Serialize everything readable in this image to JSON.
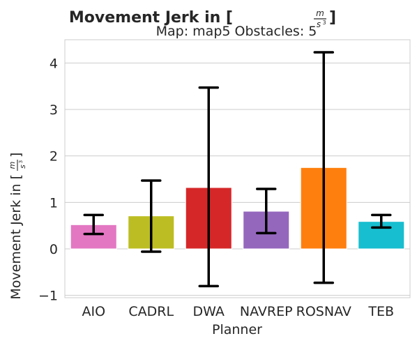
{
  "chart_data": {
    "type": "bar",
    "title": "Movement Jerk in [m/s³]",
    "title_parts": {
      "prefix": "Movement Jerk in [",
      "num": "m",
      "den": "s",
      "den_exp": "3",
      "suffix": "]"
    },
    "subtitle": "Map: map5 Obstacles: 5",
    "xlabel": "Planner",
    "ylabel": "Movement Jerk in [m/s³]",
    "ylabel_parts": {
      "prefix": "Movement Jerk in [",
      "num": "m",
      "den": "s",
      "den_exp": "3",
      "suffix": "]"
    },
    "ylim": [
      -1.05,
      4.5
    ],
    "yticks": [
      -1,
      0,
      1,
      2,
      3,
      4
    ],
    "grid": true,
    "categories": [
      "AIO",
      "CADRL",
      "DWA",
      "NAVREP",
      "ROSNAV",
      "TEB"
    ],
    "values": [
      0.52,
      0.71,
      1.32,
      0.81,
      1.75,
      0.59
    ],
    "error_low": [
      0.32,
      -0.06,
      -0.8,
      0.34,
      -0.73,
      0.46
    ],
    "error_high": [
      0.73,
      1.47,
      3.47,
      1.29,
      4.23,
      0.73
    ],
    "colors": [
      "#e377c2",
      "#bcbd22",
      "#d62728",
      "#9467bd",
      "#ff7f0e",
      "#17becf"
    ]
  }
}
